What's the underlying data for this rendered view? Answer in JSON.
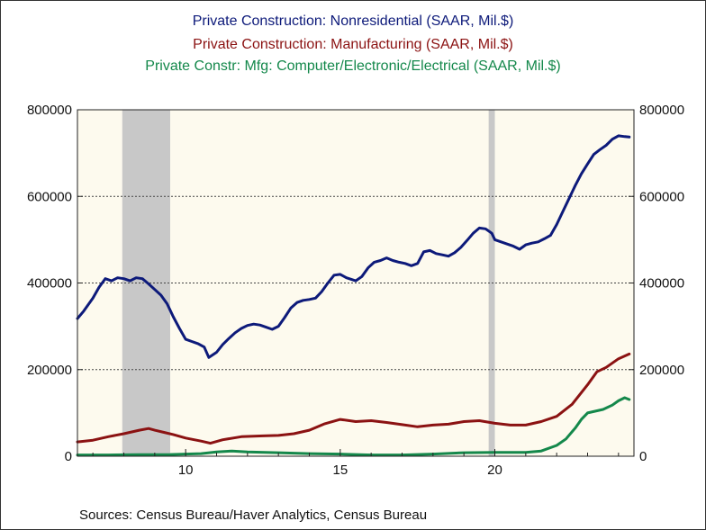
{
  "chart_data": {
    "type": "line",
    "title_lines": [
      "Private Construction: Nonresidential (SAAR, Mil.$)",
      "Private Construction: Manufacturing (SAAR, Mil.$)",
      "Private Constr: Mfg: Computer/Electronic/Electrical (SAAR, Mil.$)"
    ],
    "source": "Sources:  Census Bureau/Haver Analytics, Census Bureau",
    "x_range": [
      2006.5,
      2024.5
    ],
    "xticks": [
      2010,
      2015,
      2020
    ],
    "xtick_labels": [
      "10",
      "15",
      "20"
    ],
    "ylim": [
      0,
      800000
    ],
    "yticks": [
      0,
      200000,
      400000,
      600000,
      800000
    ],
    "ytick_labels": [
      "0",
      "200000",
      "400000",
      "600000",
      "800000"
    ],
    "dual_y_axis": true,
    "grid": "horizontal-dotted",
    "colors": {
      "plot_background": "#fdfaee",
      "recession_shading": "#c8c8c8",
      "nonresidential": "#0d1a7a",
      "manufacturing": "#8b1212",
      "computer_electronic_electrical": "#14884b"
    },
    "recessions": [
      [
        2007.95,
        2009.5
      ],
      [
        2019.8,
        2020.0
      ]
    ],
    "series": [
      {
        "key": "nonresidential",
        "color": "#0d1a7a",
        "points": [
          [
            2006.5,
            318000
          ],
          [
            2006.7,
            335000
          ],
          [
            2007.0,
            365000
          ],
          [
            2007.2,
            390000
          ],
          [
            2007.4,
            410000
          ],
          [
            2007.6,
            405000
          ],
          [
            2007.8,
            412000
          ],
          [
            2008.0,
            410000
          ],
          [
            2008.2,
            405000
          ],
          [
            2008.4,
            412000
          ],
          [
            2008.6,
            410000
          ],
          [
            2008.8,
            398000
          ],
          [
            2009.0,
            385000
          ],
          [
            2009.2,
            372000
          ],
          [
            2009.4,
            352000
          ],
          [
            2009.6,
            322000
          ],
          [
            2009.8,
            295000
          ],
          [
            2010.0,
            270000
          ],
          [
            2010.2,
            265000
          ],
          [
            2010.4,
            260000
          ],
          [
            2010.6,
            252000
          ],
          [
            2010.75,
            228000
          ],
          [
            2011.0,
            240000
          ],
          [
            2011.2,
            258000
          ],
          [
            2011.4,
            272000
          ],
          [
            2011.6,
            285000
          ],
          [
            2011.8,
            295000
          ],
          [
            2012.0,
            302000
          ],
          [
            2012.2,
            305000
          ],
          [
            2012.4,
            303000
          ],
          [
            2012.6,
            298000
          ],
          [
            2012.8,
            293000
          ],
          [
            2013.0,
            300000
          ],
          [
            2013.2,
            320000
          ],
          [
            2013.4,
            342000
          ],
          [
            2013.6,
            355000
          ],
          [
            2013.8,
            360000
          ],
          [
            2014.0,
            362000
          ],
          [
            2014.2,
            365000
          ],
          [
            2014.4,
            380000
          ],
          [
            2014.6,
            400000
          ],
          [
            2014.8,
            418000
          ],
          [
            2015.0,
            420000
          ],
          [
            2015.2,
            412000
          ],
          [
            2015.5,
            405000
          ],
          [
            2015.7,
            415000
          ],
          [
            2015.9,
            435000
          ],
          [
            2016.1,
            448000
          ],
          [
            2016.3,
            452000
          ],
          [
            2016.5,
            458000
          ],
          [
            2016.7,
            452000
          ],
          [
            2016.9,
            448000
          ],
          [
            2017.1,
            445000
          ],
          [
            2017.3,
            440000
          ],
          [
            2017.5,
            445000
          ],
          [
            2017.7,
            472000
          ],
          [
            2017.9,
            475000
          ],
          [
            2018.1,
            468000
          ],
          [
            2018.3,
            465000
          ],
          [
            2018.5,
            462000
          ],
          [
            2018.7,
            470000
          ],
          [
            2018.9,
            482000
          ],
          [
            2019.1,
            498000
          ],
          [
            2019.3,
            515000
          ],
          [
            2019.5,
            527000
          ],
          [
            2019.7,
            525000
          ],
          [
            2019.9,
            515000
          ],
          [
            2020.0,
            500000
          ],
          [
            2020.2,
            495000
          ],
          [
            2020.4,
            490000
          ],
          [
            2020.6,
            485000
          ],
          [
            2020.8,
            478000
          ],
          [
            2021.0,
            488000
          ],
          [
            2021.2,
            492000
          ],
          [
            2021.4,
            495000
          ],
          [
            2021.6,
            502000
          ],
          [
            2021.8,
            510000
          ],
          [
            2022.0,
            535000
          ],
          [
            2022.2,
            565000
          ],
          [
            2022.4,
            595000
          ],
          [
            2022.6,
            625000
          ],
          [
            2022.8,
            652000
          ],
          [
            2023.0,
            675000
          ],
          [
            2023.2,
            697000
          ],
          [
            2023.4,
            708000
          ],
          [
            2023.6,
            718000
          ],
          [
            2023.8,
            732000
          ],
          [
            2024.0,
            740000
          ],
          [
            2024.2,
            738000
          ],
          [
            2024.35,
            737000
          ]
        ]
      },
      {
        "key": "manufacturing",
        "color": "#8b1212",
        "points": [
          [
            2006.5,
            33000
          ],
          [
            2007.0,
            37000
          ],
          [
            2007.5,
            45000
          ],
          [
            2008.0,
            52000
          ],
          [
            2008.5,
            60000
          ],
          [
            2008.8,
            64000
          ],
          [
            2009.0,
            60000
          ],
          [
            2009.3,
            55000
          ],
          [
            2009.6,
            50000
          ],
          [
            2010.0,
            42000
          ],
          [
            2010.5,
            35000
          ],
          [
            2010.8,
            30000
          ],
          [
            2011.2,
            38000
          ],
          [
            2011.8,
            45000
          ],
          [
            2012.5,
            47000
          ],
          [
            2013.0,
            48000
          ],
          [
            2013.5,
            52000
          ],
          [
            2014.0,
            60000
          ],
          [
            2014.5,
            75000
          ],
          [
            2015.0,
            85000
          ],
          [
            2015.5,
            80000
          ],
          [
            2016.0,
            82000
          ],
          [
            2016.5,
            78000
          ],
          [
            2017.0,
            73000
          ],
          [
            2017.5,
            68000
          ],
          [
            2018.0,
            72000
          ],
          [
            2018.5,
            74000
          ],
          [
            2019.0,
            80000
          ],
          [
            2019.5,
            82000
          ],
          [
            2020.0,
            76000
          ],
          [
            2020.5,
            72000
          ],
          [
            2021.0,
            72000
          ],
          [
            2021.5,
            80000
          ],
          [
            2022.0,
            92000
          ],
          [
            2022.5,
            120000
          ],
          [
            2023.0,
            165000
          ],
          [
            2023.3,
            195000
          ],
          [
            2023.6,
            205000
          ],
          [
            2024.0,
            225000
          ],
          [
            2024.35,
            236000
          ]
        ]
      },
      {
        "key": "computer_electronic_electrical",
        "color": "#14884b",
        "points": [
          [
            2006.5,
            3000
          ],
          [
            2007.5,
            3000
          ],
          [
            2008.5,
            3500
          ],
          [
            2009.5,
            4000
          ],
          [
            2010.5,
            6000
          ],
          [
            2011.0,
            10000
          ],
          [
            2011.5,
            12000
          ],
          [
            2012.0,
            10000
          ],
          [
            2013.0,
            8000
          ],
          [
            2014.0,
            6000
          ],
          [
            2015.0,
            5000
          ],
          [
            2016.0,
            3000
          ],
          [
            2017.0,
            3000
          ],
          [
            2018.0,
            5000
          ],
          [
            2019.0,
            8000
          ],
          [
            2020.0,
            9000
          ],
          [
            2021.0,
            9000
          ],
          [
            2021.5,
            12000
          ],
          [
            2022.0,
            25000
          ],
          [
            2022.3,
            40000
          ],
          [
            2022.6,
            65000
          ],
          [
            2022.8,
            85000
          ],
          [
            2023.0,
            100000
          ],
          [
            2023.5,
            108000
          ],
          [
            2023.8,
            118000
          ],
          [
            2024.0,
            128000
          ],
          [
            2024.2,
            135000
          ],
          [
            2024.35,
            131000
          ]
        ]
      }
    ]
  }
}
